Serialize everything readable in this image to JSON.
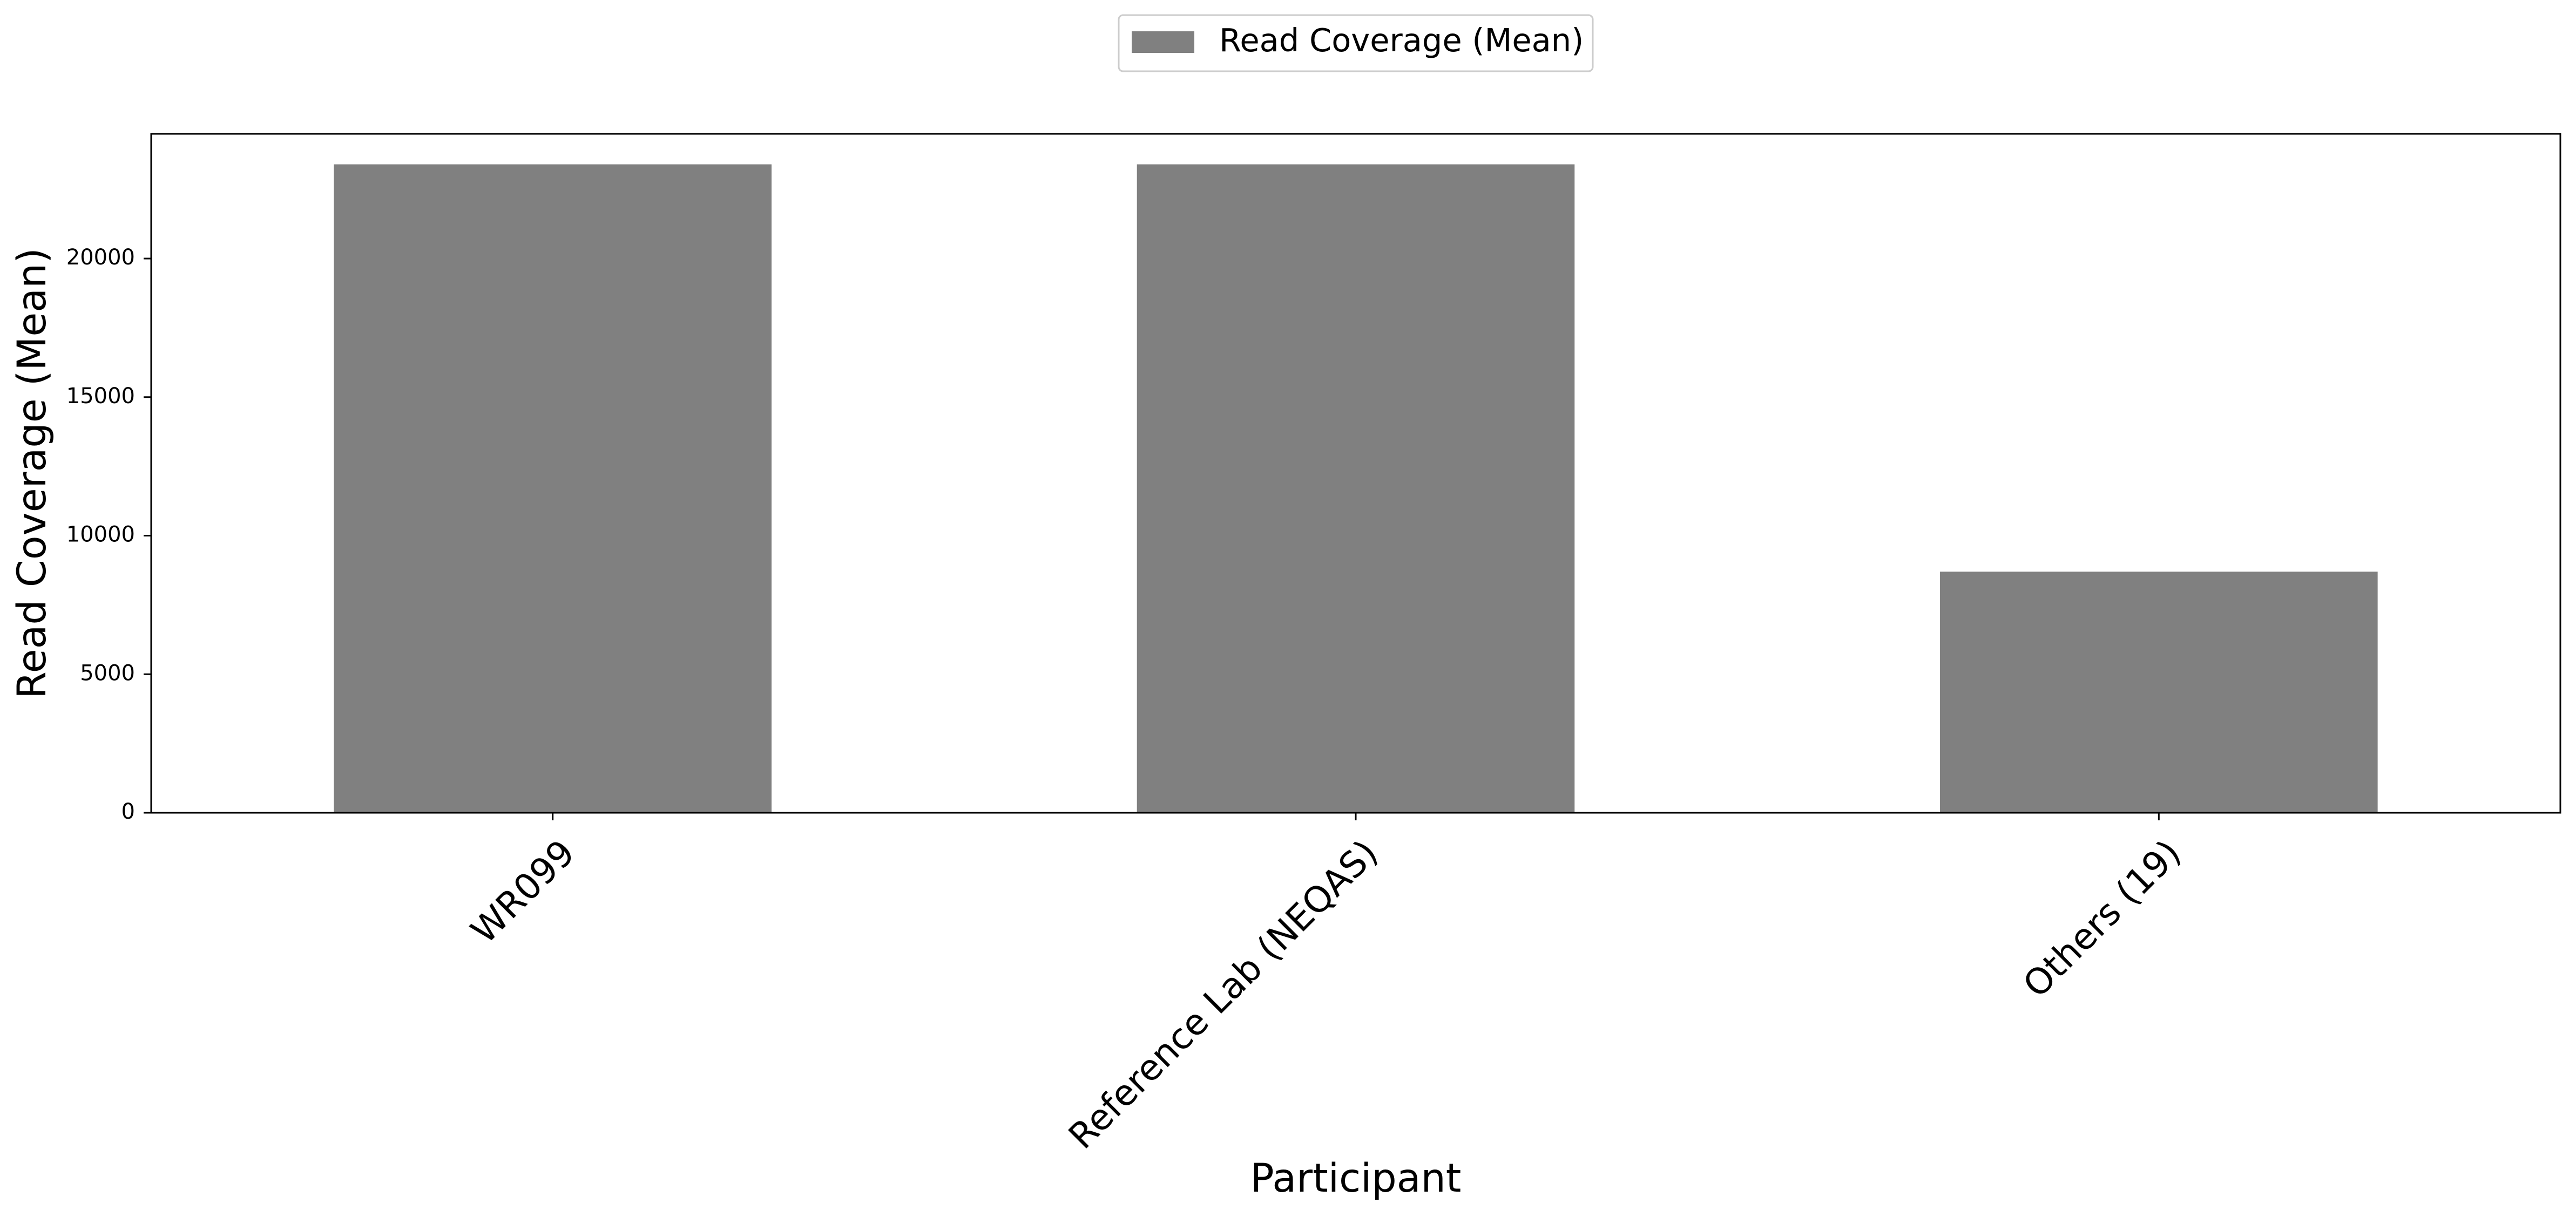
{
  "chart_data": {
    "type": "bar",
    "categories": [
      "WR099",
      "Reference Lab (NEQAS)",
      "Others (19)"
    ],
    "series": [
      {
        "name": "Read Coverage (Mean)",
        "values": [
          23400,
          23400,
          8700
        ]
      }
    ],
    "title": "",
    "xlabel": "Participant",
    "ylabel": "Read Coverage (Mean)",
    "ylim": [
      0,
      24500
    ],
    "yticks": [
      0,
      5000,
      10000,
      15000,
      20000
    ],
    "grid": false,
    "legend_position": "top-center",
    "bar_color": "#808080",
    "baseline_style": "dashed",
    "x_tick_rotation": "45 degrees"
  }
}
